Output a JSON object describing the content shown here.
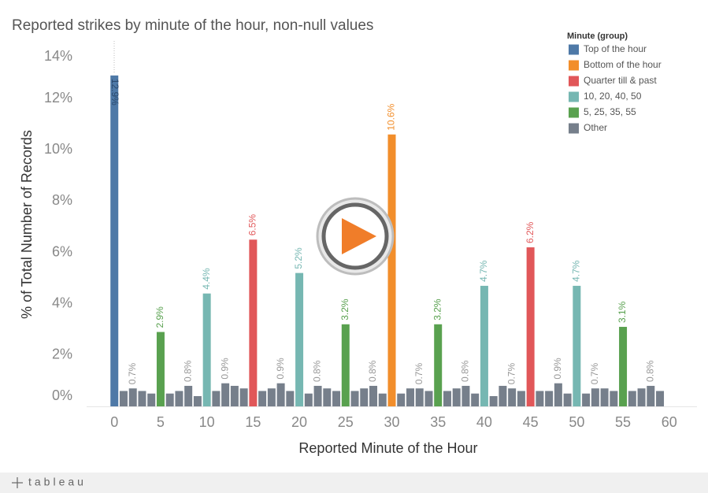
{
  "chart_data": {
    "type": "bar",
    "title": "Reported strikes by minute of the hour, non-null values",
    "x_label": "Reported Minute of the Hour",
    "y_label": "% of Total Number of Records",
    "legend_title": "Minute (group)",
    "xlim": [
      -3,
      63
    ],
    "xticks": [
      0,
      5,
      10,
      15,
      20,
      25,
      30,
      35,
      40,
      45,
      50,
      55,
      60
    ],
    "ylim": [
      0,
      14
    ],
    "yticks": [
      {
        "value": 0,
        "label": "0%"
      },
      {
        "value": 2,
        "label": "2%"
      },
      {
        "value": 4,
        "label": "4%"
      },
      {
        "value": 6,
        "label": "6%"
      },
      {
        "value": 8,
        "label": "8%"
      },
      {
        "value": 10,
        "label": "10%"
      },
      {
        "value": 12,
        "label": "12%"
      },
      {
        "value": 14,
        "label": "14%"
      }
    ],
    "series": [
      {
        "name": "Top of the hour",
        "color": "#4e79a7",
        "x": [
          0
        ],
        "values": [
          12.9
        ],
        "value_labels": [
          "12.9%"
        ]
      },
      {
        "name": "Bottom of the hour",
        "color": "#f28e2b",
        "x": [
          30
        ],
        "values": [
          10.6
        ],
        "value_labels": [
          "10.6%"
        ]
      },
      {
        "name": "Quarter till & past",
        "color": "#e15759",
        "x": [
          15,
          45
        ],
        "values": [
          6.5,
          6.2
        ],
        "value_labels": [
          "6.5%",
          "6.2%"
        ]
      },
      {
        "name": "10, 20, 40, 50",
        "color": "#76b7b2",
        "x": [
          10,
          20,
          40,
          50
        ],
        "values": [
          4.4,
          5.2,
          4.7,
          4.7
        ],
        "value_labels": [
          "4.4%",
          "5.2%",
          "4.7%",
          "4.7%"
        ]
      },
      {
        "name": "5, 25, 35, 55",
        "color": "#59a14f",
        "x": [
          5,
          25,
          35,
          55
        ],
        "values": [
          2.9,
          3.2,
          3.2,
          3.1
        ],
        "value_labels": [
          "2.9%",
          "3.2%",
          "3.2%",
          "3.1%"
        ]
      },
      {
        "name": "Other",
        "color": "#767f8b",
        "x": [
          1,
          2,
          3,
          4,
          6,
          7,
          8,
          9,
          11,
          12,
          13,
          14,
          16,
          17,
          18,
          19,
          21,
          22,
          23,
          24,
          26,
          27,
          28,
          29,
          31,
          32,
          33,
          34,
          36,
          37,
          38,
          39,
          41,
          42,
          43,
          44,
          46,
          47,
          48,
          49,
          51,
          52,
          53,
          54,
          56,
          57,
          58,
          59
        ],
        "values": [
          0.6,
          0.7,
          0.6,
          0.5,
          0.5,
          0.6,
          0.8,
          0.4,
          0.6,
          0.9,
          0.8,
          0.7,
          0.6,
          0.7,
          0.9,
          0.6,
          0.5,
          0.8,
          0.7,
          0.6,
          0.6,
          0.7,
          0.8,
          0.5,
          0.5,
          0.7,
          0.7,
          0.6,
          0.6,
          0.7,
          0.8,
          0.5,
          0.4,
          0.8,
          0.7,
          0.6,
          0.6,
          0.6,
          0.9,
          0.5,
          0.5,
          0.7,
          0.7,
          0.6,
          0.6,
          0.7,
          0.8,
          0.6
        ],
        "value_labels": [
          null,
          "0.7%",
          null,
          null,
          null,
          null,
          "0.8%",
          null,
          null,
          "0.9%",
          null,
          null,
          null,
          null,
          "0.9%",
          null,
          null,
          "0.8%",
          null,
          null,
          null,
          null,
          "0.8%",
          null,
          null,
          null,
          "0.7%",
          null,
          null,
          null,
          "0.8%",
          null,
          null,
          null,
          "0.7%",
          null,
          null,
          null,
          "0.9%",
          null,
          null,
          "0.7%",
          null,
          null,
          null,
          null,
          "0.8%",
          null
        ]
      }
    ]
  },
  "footer": {
    "logo": "tableau"
  }
}
